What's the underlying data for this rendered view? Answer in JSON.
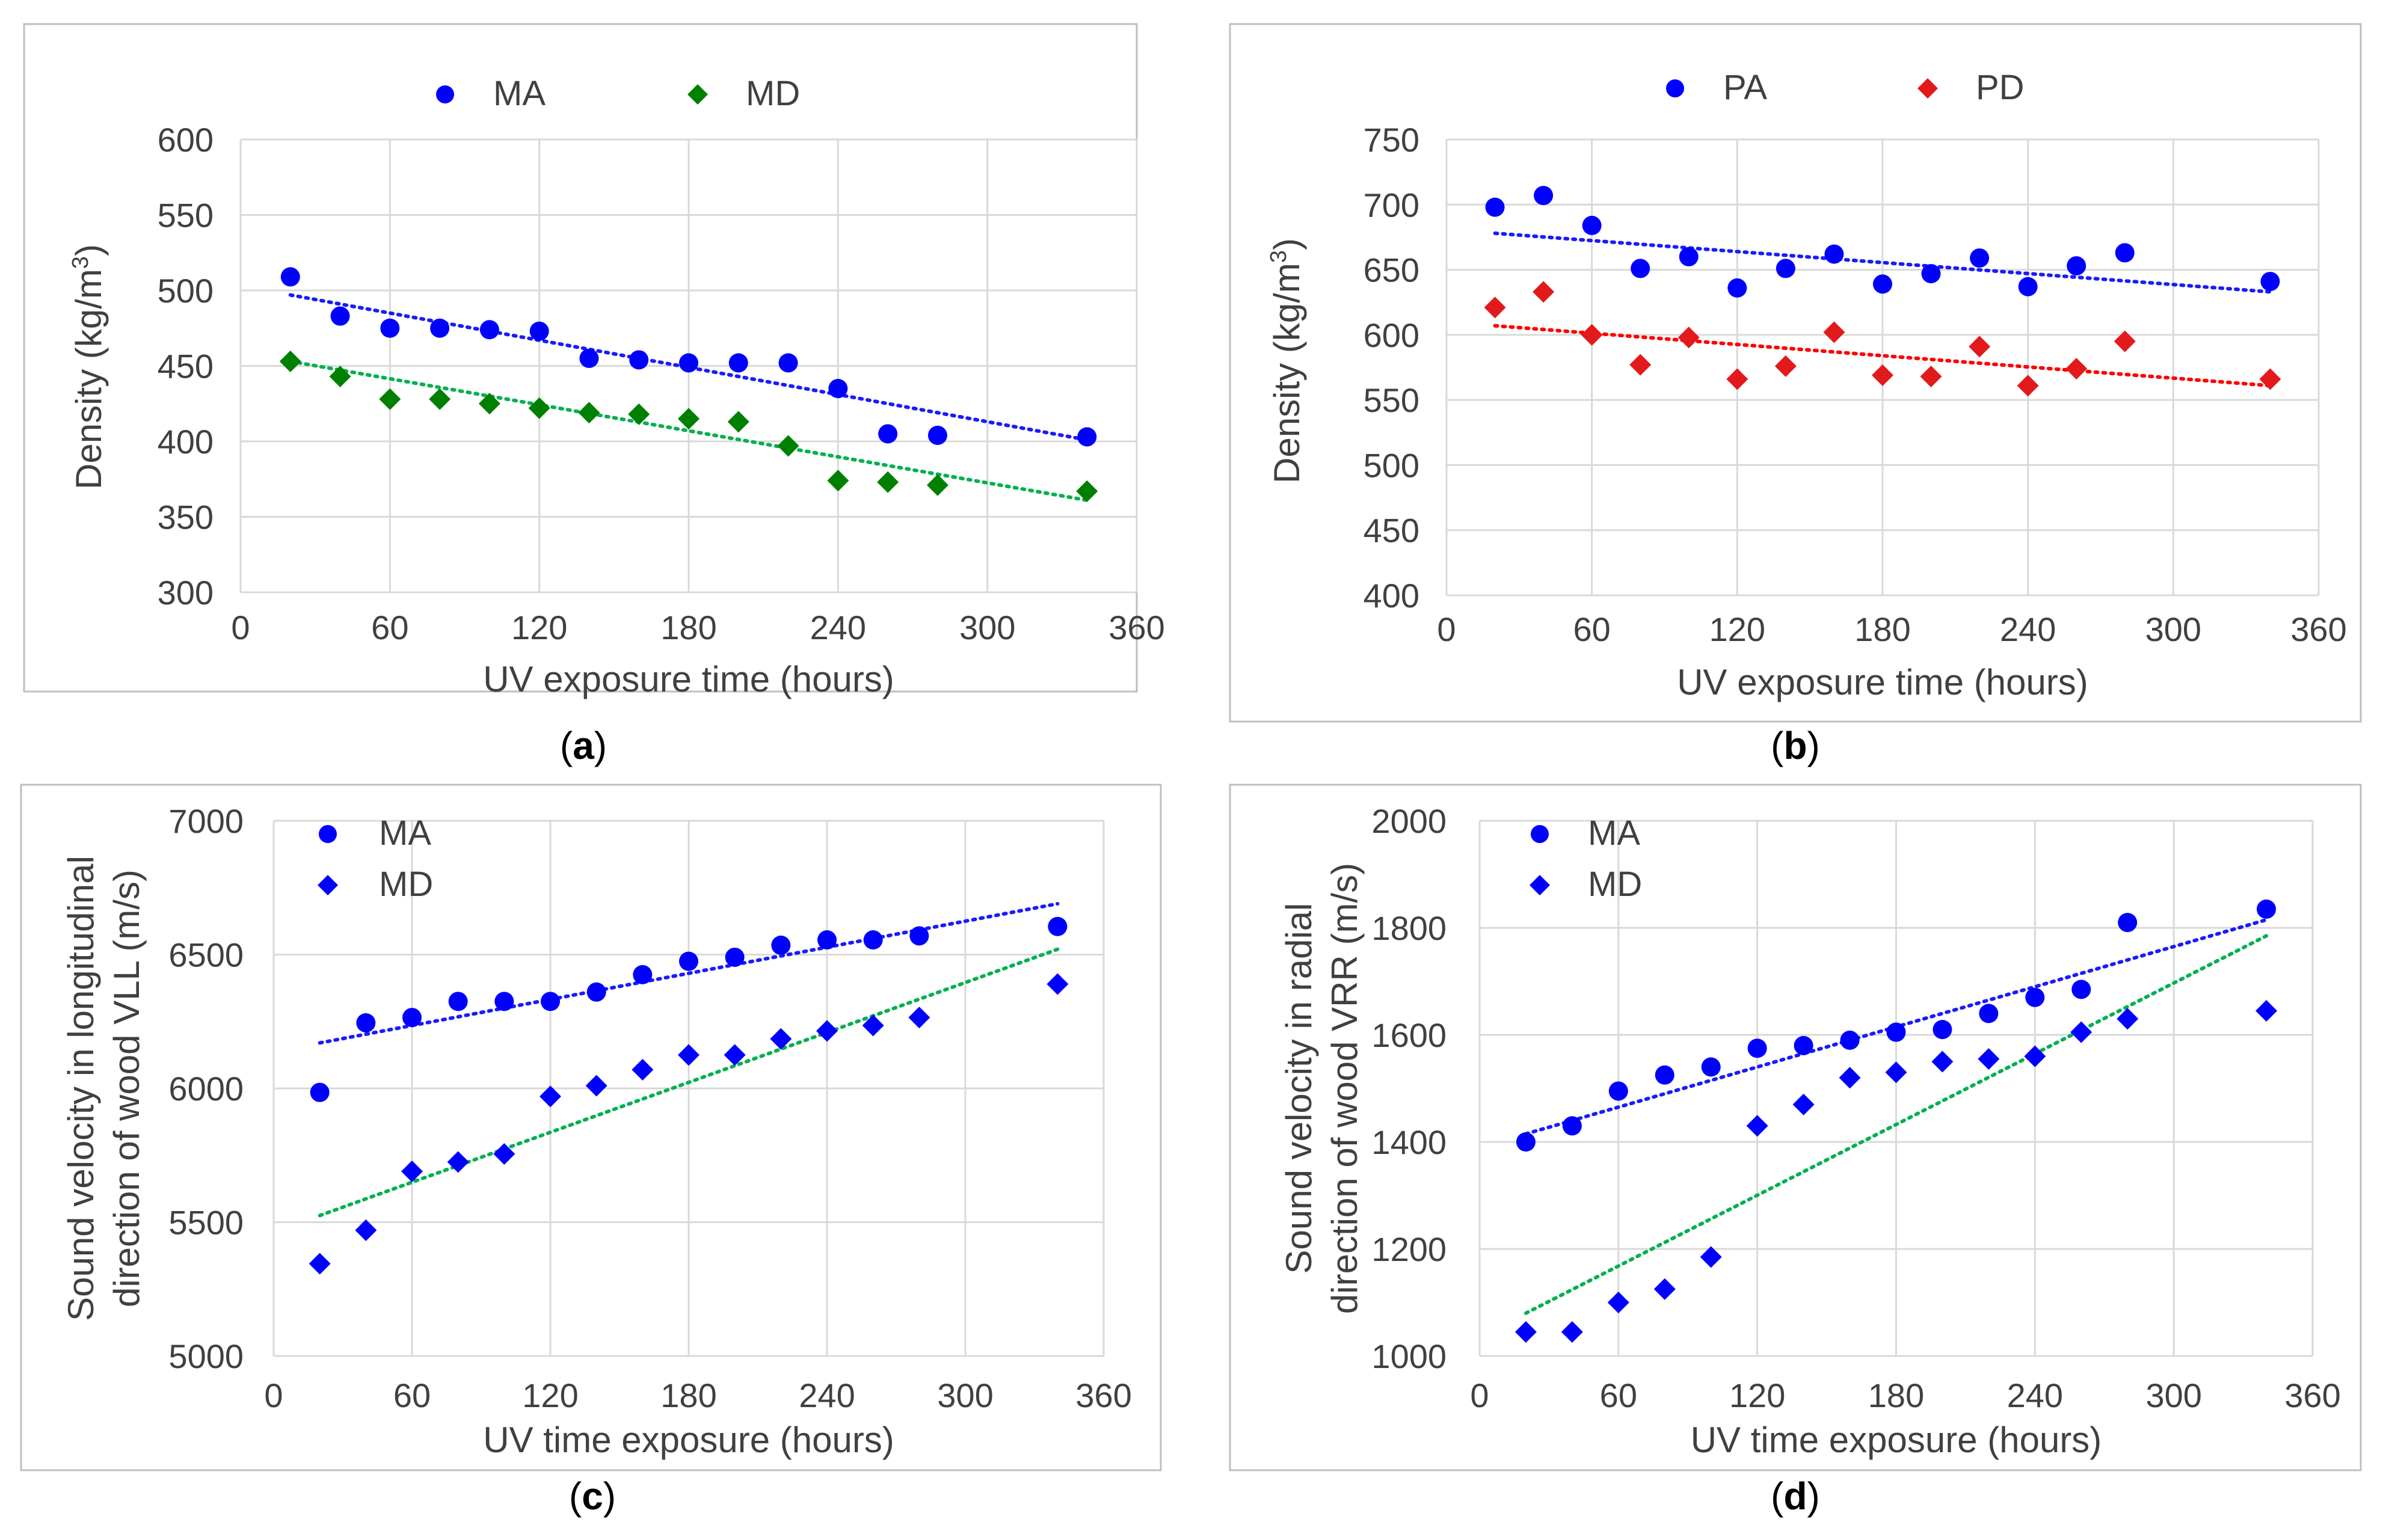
{
  "colors": {
    "MA": "#0000ff",
    "MD": "#008000",
    "PA": "#0000ff",
    "PD": "#e31a1c",
    "trend_blue": "#1a1aff",
    "trend_green": "#00b050",
    "trend_red": "#ff0000",
    "grid": "#d9d9d9",
    "frame": "#bfbfbf",
    "text": "#404040"
  },
  "chart_data": [
    {
      "id": "a",
      "caption": "a",
      "type": "scatter",
      "xlabel": "UV exposure time (hours)",
      "ylabel": "Density (kg/m3)",
      "ylabel_main": "Density (kg/m",
      "ylabel_sup": "3",
      "ylabel_end": ")",
      "xlim": [
        0,
        360
      ],
      "ylim": [
        300,
        600
      ],
      "xticks": [
        0,
        60,
        120,
        180,
        240,
        300,
        360
      ],
      "yticks": [
        300,
        350,
        400,
        450,
        500,
        550,
        600
      ],
      "legend_position": "top",
      "series": [
        {
          "name": "MA",
          "marker": "circle",
          "color_key": "MA",
          "trend_color_key": "trend_blue",
          "x": [
            20,
            40,
            60,
            80,
            100,
            120,
            140,
            160,
            180,
            200,
            220,
            240,
            260,
            280,
            340
          ],
          "y": [
            509,
            483,
            475,
            475,
            474,
            473,
            455,
            454,
            452,
            452,
            452,
            435,
            405,
            404,
            403
          ],
          "trend": [
            [
              20,
              497
            ],
            [
              340,
              401
            ]
          ]
        },
        {
          "name": "MD",
          "marker": "diamond",
          "color_key": "MD",
          "trend_color_key": "trend_green",
          "x": [
            20,
            40,
            60,
            80,
            100,
            120,
            140,
            160,
            180,
            200,
            220,
            240,
            260,
            280,
            340
          ],
          "y": [
            453,
            443,
            428,
            428,
            425,
            422,
            419,
            418,
            415,
            413,
            397,
            374,
            373,
            371,
            367
          ],
          "trend": [
            [
              20,
              453
            ],
            [
              340,
              361
            ]
          ]
        }
      ]
    },
    {
      "id": "b",
      "caption": "b",
      "type": "scatter",
      "xlabel": "UV exposure time (hours)",
      "ylabel": "Density (kg/m3)",
      "ylabel_main": "Density (kg/m",
      "ylabel_sup": "3",
      "ylabel_end": ")",
      "xlim": [
        0,
        360
      ],
      "ylim": [
        400,
        750
      ],
      "xticks": [
        0,
        60,
        120,
        180,
        240,
        300,
        360
      ],
      "yticks": [
        400,
        450,
        500,
        550,
        600,
        650,
        700,
        750
      ],
      "legend_position": "top",
      "series": [
        {
          "name": "PA",
          "marker": "circle",
          "color_key": "PA",
          "trend_color_key": "trend_blue",
          "x": [
            20,
            40,
            60,
            80,
            100,
            120,
            140,
            160,
            180,
            200,
            220,
            240,
            260,
            280,
            340
          ],
          "y": [
            698,
            707,
            684,
            651,
            660,
            636,
            651,
            662,
            639,
            647,
            659,
            637,
            653,
            663,
            641
          ],
          "trend": [
            [
              20,
              678
            ],
            [
              340,
              633
            ]
          ]
        },
        {
          "name": "PD",
          "marker": "diamond",
          "color_key": "PD",
          "trend_color_key": "trend_red",
          "x": [
            20,
            40,
            60,
            80,
            100,
            120,
            140,
            160,
            180,
            200,
            220,
            240,
            260,
            280,
            340
          ],
          "y": [
            621,
            633,
            600,
            577,
            598,
            566,
            576,
            602,
            569,
            568,
            591,
            561,
            574,
            595,
            566
          ],
          "trend": [
            [
              20,
              607
            ],
            [
              340,
              561
            ]
          ]
        }
      ]
    },
    {
      "id": "c",
      "caption": "c",
      "type": "scatter",
      "xlabel": "UV time exposure (hours)",
      "ylabel_lines": [
        "Sound velocity in longitudinal",
        "direction of wood VLL (m/s)"
      ],
      "xlim": [
        0,
        360
      ],
      "ylim": [
        5000,
        7000
      ],
      "xticks": [
        0,
        60,
        120,
        180,
        240,
        300,
        360
      ],
      "yticks": [
        5000,
        5500,
        6000,
        6500,
        7000
      ],
      "legend_position": "top-left",
      "series": [
        {
          "name": "MA",
          "marker": "circle",
          "color_key": "MA",
          "trend_color_key": "trend_blue",
          "x": [
            20,
            40,
            60,
            80,
            100,
            120,
            140,
            160,
            180,
            200,
            220,
            240,
            260,
            280,
            340
          ],
          "y": [
            5985,
            6245,
            6265,
            6325,
            6325,
            6325,
            6360,
            6425,
            6475,
            6490,
            6535,
            6555,
            6555,
            6570,
            6605
          ],
          "trend": [
            [
              20,
              6170
            ],
            [
              340,
              6690
            ]
          ]
        },
        {
          "name": "MD",
          "marker": "diamond",
          "color_key": "MA",
          "trend_color_key": "trend_green",
          "x": [
            20,
            40,
            60,
            80,
            100,
            120,
            140,
            160,
            180,
            200,
            220,
            240,
            260,
            280,
            340
          ],
          "y": [
            5345,
            5470,
            5690,
            5725,
            5755,
            5970,
            6010,
            6070,
            6125,
            6125,
            6185,
            6215,
            6235,
            6265,
            6390
          ],
          "trend": [
            [
              20,
              5525
            ],
            [
              340,
              6520
            ]
          ]
        }
      ]
    },
    {
      "id": "d",
      "caption": "d",
      "type": "scatter",
      "xlabel": "UV time exposure (hours)",
      "ylabel_lines": [
        "Sound velocity in radial",
        "direction of wood VRR (m/s)"
      ],
      "xlim": [
        0,
        360
      ],
      "ylim": [
        1000,
        2000
      ],
      "xticks": [
        0,
        60,
        120,
        180,
        240,
        300,
        360
      ],
      "yticks": [
        1000,
        1200,
        1400,
        1600,
        1800,
        2000
      ],
      "legend_position": "top-left",
      "series": [
        {
          "name": "MA",
          "marker": "circle",
          "color_key": "MA",
          "trend_color_key": "trend_blue",
          "x": [
            20,
            40,
            60,
            80,
            100,
            120,
            140,
            160,
            180,
            200,
            220,
            240,
            260,
            280,
            340
          ],
          "y": [
            1400,
            1430,
            1495,
            1525,
            1540,
            1575,
            1580,
            1590,
            1605,
            1610,
            1640,
            1670,
            1685,
            1810,
            1835
          ],
          "trend": [
            [
              20,
              1415
            ],
            [
              340,
              1815
            ]
          ]
        },
        {
          "name": "MD",
          "marker": "diamond",
          "color_key": "MA",
          "trend_color_key": "trend_green",
          "x": [
            20,
            40,
            60,
            80,
            100,
            120,
            140,
            160,
            180,
            200,
            220,
            240,
            260,
            280,
            340
          ],
          "y": [
            1045,
            1045,
            1100,
            1125,
            1185,
            1430,
            1470,
            1520,
            1530,
            1550,
            1555,
            1560,
            1605,
            1630,
            1645
          ],
          "trend": [
            [
              20,
              1080
            ],
            [
              340,
              1785
            ]
          ]
        }
      ]
    }
  ]
}
